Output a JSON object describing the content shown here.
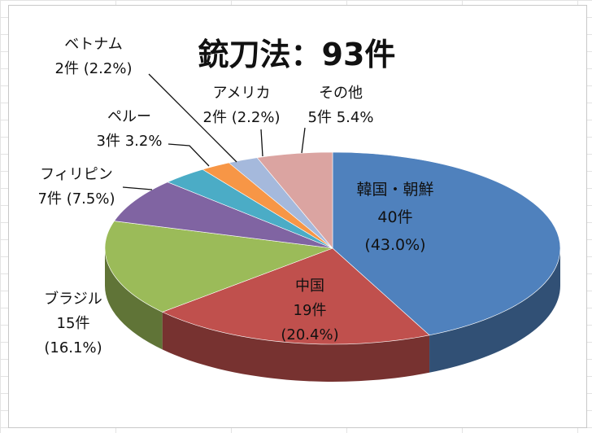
{
  "chart_data": {
    "type": "pie",
    "title": "銃刀法：93件",
    "slices": [
      {
        "name": "韓国・朝鮮",
        "count_label": "40件",
        "pct_label": "(43.0%)",
        "value": 40,
        "color": "#4f81bd"
      },
      {
        "name": "中国",
        "count_label": "19件",
        "pct_label": "(20.4%)",
        "value": 19,
        "color": "#c0504d"
      },
      {
        "name": "ブラジル",
        "count_label": "15件",
        "pct_label": "(16.1%)",
        "value": 15,
        "color": "#9bbb59"
      },
      {
        "name": "フィリピン",
        "count_label": "7件",
        "pct_label": "(7.5%)",
        "value": 7,
        "color": "#8064a2"
      },
      {
        "name": "ペルー",
        "count_label": "3件",
        "pct_label": "3.2%",
        "value": 3,
        "color": "#4bacc6"
      },
      {
        "name": "ベトナム",
        "count_label": "2件",
        "pct_label": "(2.2%)",
        "value": 2,
        "color": "#f79646"
      },
      {
        "name": "アメリカ",
        "count_label": "2件",
        "pct_label": "(2.2%)",
        "value": 2,
        "color": "#a5b9dc"
      },
      {
        "name": "その他",
        "count_label": "5件",
        "pct_label": "5.4%",
        "value": 5,
        "color": "#dba4a1"
      }
    ]
  }
}
